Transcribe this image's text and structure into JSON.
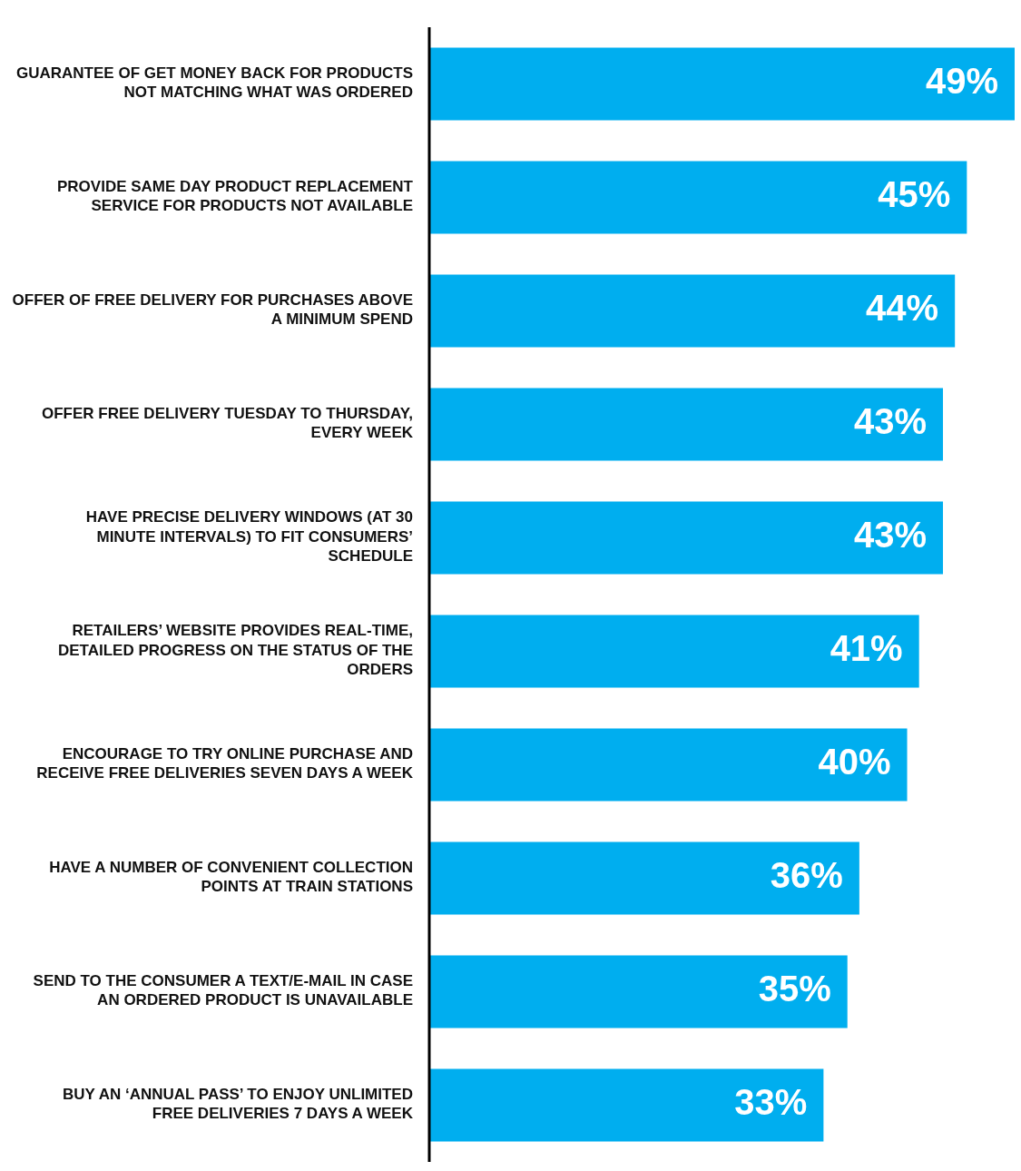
{
  "chart_data": {
    "type": "bar",
    "orientation": "horizontal",
    "categories": [
      "GUARANTEE OF GET MONEY BACK FOR PRODUCTS NOT MATCHING WHAT WAS ORDERED",
      "PROVIDE SAME DAY PRODUCT REPLACEMENT SERVICE FOR PRODUCTS NOT AVAILABLE",
      "OFFER OF FREE DELIVERY FOR PURCHASES ABOVE A MINIMUM SPEND",
      "OFFER FREE DELIVERY TUESDAY TO THURSDAY, EVERY WEEK",
      "HAVE PRECISE DELIVERY WINDOWS (AT 30 MINUTE INTERVALS) TO FIT CONSUMERS’ SCHEDULE",
      "RETAILERS’ WEBSITE PROVIDES REAL-TIME, DETAILED PROGRESS ON THE STATUS OF THE ORDERS",
      "ENCOURAGE TO TRY ONLINE PURCHASE AND RECEIVE FREE DELIVERIES SEVEN DAYS A WEEK",
      "HAVE A NUMBER OF CONVENIENT COLLECTION POINTS AT TRAIN STATIONS",
      "SEND TO THE CONSUMER A TEXT/E-MAIL IN CASE AN ORDERED PRODUCT IS UNAVAILABLE",
      "BUY AN ‘ANNUAL PASS’ TO ENJOY UNLIMITED FREE DELIVERIES 7 DAYS A WEEK"
    ],
    "values": [
      49,
      45,
      44,
      43,
      43,
      41,
      40,
      36,
      35,
      33
    ],
    "value_labels": [
      "49%",
      "45%",
      "44%",
      "43%",
      "43%",
      "41%",
      "40%",
      "36%",
      "35%",
      "33%"
    ],
    "color": "#00aeef",
    "grid": false,
    "legend": false
  }
}
